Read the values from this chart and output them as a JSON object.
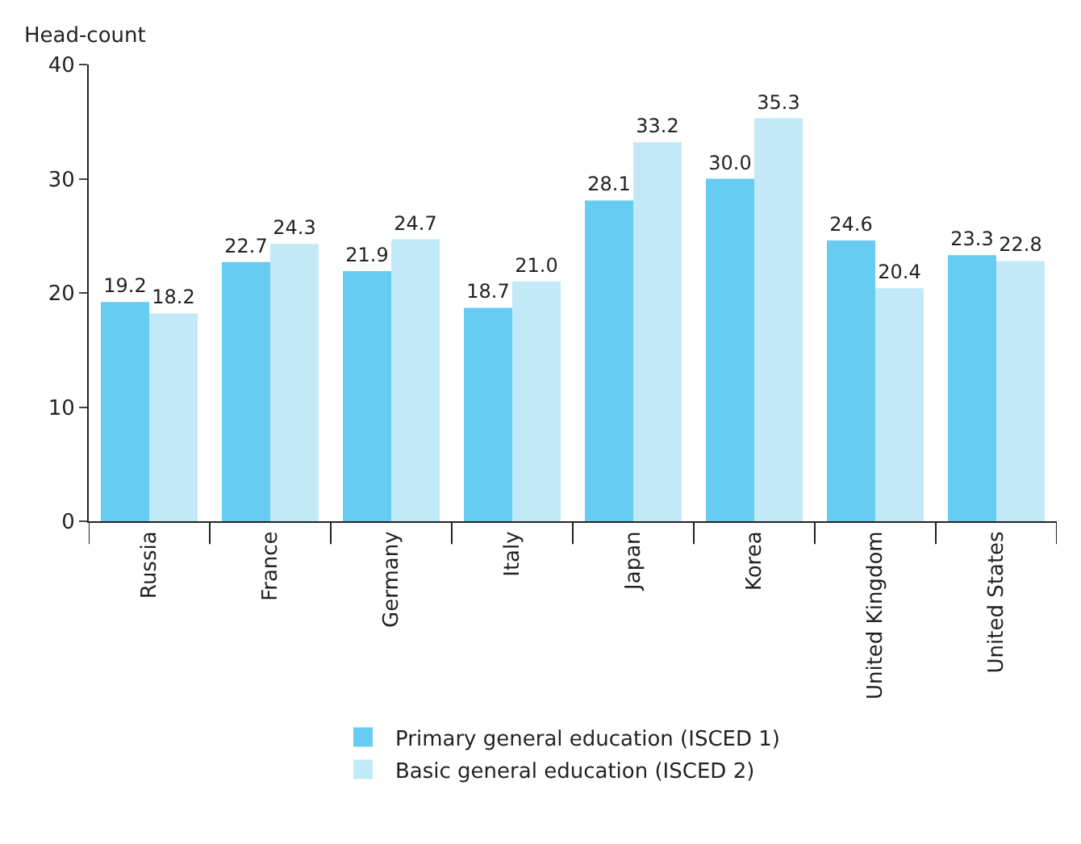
{
  "chart_data": {
    "type": "bar",
    "ylabel": "Head-count",
    "categories": [
      "Russia",
      "France",
      "Germany",
      "Italy",
      "Japan",
      "Korea",
      "United Kingdom",
      "United States"
    ],
    "series": [
      {
        "name": "Primary general education (ISCED 1)",
        "color": "#66ccf2",
        "values": [
          19.2,
          22.7,
          21.9,
          18.7,
          28.1,
          30.0,
          24.6,
          23.3
        ],
        "value_labels": [
          "19.2",
          "22.7",
          "21.9",
          "18.7",
          "28.1",
          "30.0",
          "24.6",
          "23.3"
        ]
      },
      {
        "name": "Basic general education (ISCED 2)",
        "color": "#c2e9f8",
        "values": [
          18.2,
          24.3,
          24.7,
          21.0,
          33.2,
          35.3,
          20.4,
          22.8
        ],
        "value_labels": [
          "18.2",
          "24.3",
          "24.7",
          "21.0",
          "33.2",
          "35.3",
          "20.4",
          "22.8"
        ]
      }
    ],
    "ylim": [
      0,
      40
    ],
    "yticks": [
      0,
      10,
      20,
      30,
      40
    ],
    "legend": "bottom"
  }
}
